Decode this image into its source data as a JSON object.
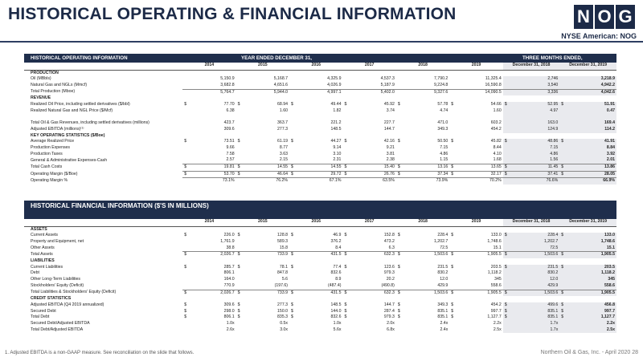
{
  "header": {
    "title": "HISTORICAL OPERATING & FINANCIAL INFORMATION",
    "logo_letters": [
      "N",
      "O",
      "G"
    ],
    "exchange": "NYSE American: NOG"
  },
  "operating": {
    "title": "HISTORICAL OPERATING INFORMATION",
    "group_year": "YEAR ENDED DECEMBER 31,",
    "group_quarter": "THREE MONTHS ENDED,",
    "years": [
      "2014",
      "2015",
      "2016",
      "2017",
      "2018",
      "2019",
      "December 31, 2018",
      "December 31, 2019"
    ],
    "rows": [
      {
        "label": "PRODUCTION",
        "type": "sec"
      },
      {
        "label": "Oil (MBbls)",
        "v": [
          "5,150.9",
          "5,168.7",
          "4,325.9",
          "4,537.3",
          "7,790.2",
          "11,325.4",
          "2,746",
          "3,218.9"
        ]
      },
      {
        "label": "Natural Gas and NGLs (Mmcf)",
        "v": [
          "3,682.8",
          "4,651.6",
          "4,026.9",
          "5,187.9",
          "9,224.8",
          "16,590.8",
          "3,540",
          "4,942.2"
        ],
        "ul": true
      },
      {
        "label": "Total Production (Mboe)",
        "v": [
          "5,764.7",
          "5,944.0",
          "4,997.1",
          "5,402.0",
          "9,327.6",
          "14,090.5",
          "3,336",
          "4,042.6"
        ]
      },
      {
        "label": "REVENUE",
        "type": "sec"
      },
      {
        "label": "Realized Oil Price, including settled derivatives ($/bbl)",
        "cur": true,
        "v": [
          "77.70",
          "68.94",
          "49.44",
          "45.92",
          "57.78",
          "54.66",
          "52.95",
          "51.91"
        ]
      },
      {
        "label": "Realized Natural Gas and NGL Price ($/Mcf)",
        "v": [
          "6.38",
          "1.60",
          "1.82",
          "3.74",
          "4.74",
          "1.60",
          "4.97",
          "0.47"
        ]
      },
      {
        "label": "",
        "type": "blank"
      },
      {
        "label": "Total Oil & Gas Revenues, including settled derivatives (millions)",
        "v": [
          "423.7",
          "363.7",
          "221.2",
          "227.7",
          "471.0",
          "603.2",
          "163.0",
          "169.4"
        ]
      },
      {
        "label": "Adjusted EBITDA (millions)⁽¹⁾",
        "v": [
          "309.6",
          "277.3",
          "148.5",
          "144.7",
          "349.3",
          "454.2",
          "124.9",
          "114.2"
        ]
      },
      {
        "label": "KEY OPERATING STATISTICS ($/Boe)",
        "type": "sec"
      },
      {
        "label": "Average Realized Price",
        "cur": true,
        "v": [
          "73.51",
          "61.19",
          "44.27",
          "42.16",
          "50.50",
          "45.82",
          "48.86",
          "41.91"
        ]
      },
      {
        "label": "Production Expenses",
        "v": [
          "9.66",
          "8.77",
          "9.14",
          "9.21",
          "7.15",
          "8.44",
          "7.15",
          "8.84"
        ]
      },
      {
        "label": "Production Taxes",
        "v": [
          "7.58",
          "3.63",
          "3.10",
          "3.81",
          "4.86",
          "4.10",
          "4.86",
          "3.92"
        ]
      },
      {
        "label": "General & Administrative Expenses-Cash",
        "v": [
          "2.57",
          "2.15",
          "2.31",
          "2.38",
          "1.15",
          "1.68",
          "1.56",
          "2.01"
        ],
        "ul": true
      },
      {
        "label": "Total Cash Costs",
        "cur": true,
        "v": [
          "19.81",
          "14.55",
          "14.55",
          "15.40",
          "13.16",
          "13.65",
          "11.45",
          "13.86"
        ],
        "ul": true
      },
      {
        "label": "Operating Margin ($/Boe)",
        "cur": true,
        "v": [
          "53.70",
          "46.64",
          "29.72",
          "26.76",
          "37.34",
          "32.17",
          "37.41",
          "28.05"
        ],
        "ul": true
      },
      {
        "label": "Operating Margin %",
        "v": [
          "73.1%",
          "76.2%",
          "67.1%",
          "63.5%",
          "73.9%",
          "70.2%",
          "76.6%",
          "66.9%"
        ]
      }
    ]
  },
  "financial": {
    "title": "HISTORICAL FINANCIAL INFORMATION ($'S IN MILLIONS)",
    "years": [
      "2014",
      "2015",
      "2016",
      "2017",
      "2018",
      "2019",
      "December 31, 2018",
      "December 31, 2019"
    ],
    "rows": [
      {
        "label": "ASSETS",
        "type": "sec"
      },
      {
        "label": "Current Assets",
        "cur": true,
        "v": [
          "226.0",
          "128.8",
          "46.9",
          "152.8",
          "228.4",
          "133.0",
          "228.4",
          "133.0"
        ]
      },
      {
        "label": "Property and Equipment, net",
        "v": [
          "1,761.9",
          "589.3",
          "376.2",
          "473.2",
          "1,202.7",
          "1,748.6",
          "1,202.7",
          "1,748.6"
        ]
      },
      {
        "label": "Other Assets",
        "v": [
          "38.8",
          "15.8",
          "8.4",
          "6.3",
          "72.5",
          "15.1",
          "72.5",
          "15.1"
        ],
        "ul": true
      },
      {
        "label": "Total Assets",
        "cur": true,
        "v": [
          "2,026.7",
          "733.9",
          "431.5",
          "632.3",
          "1,503.6",
          "1,905.5",
          "1,503.6",
          "1,905.5"
        ]
      },
      {
        "label": "LIABILITIES",
        "type": "sec"
      },
      {
        "label": "Current Liabilities",
        "cur": true,
        "v": [
          "285.7",
          "78.1",
          "77.4",
          "123.6",
          "231.5",
          "203.5",
          "231.5",
          "203.5"
        ]
      },
      {
        "label": "Debt",
        "v": [
          "806.1",
          "847.8",
          "832.6",
          "979.3",
          "830.2",
          "1,118.2",
          "830.2",
          "1,118.2"
        ]
      },
      {
        "label": "Other Long-Term Liabilities",
        "v": [
          "164.0",
          "5.6",
          "8.9",
          "20.2",
          "12.0",
          "345",
          "12.0",
          "345"
        ]
      },
      {
        "label": "Stockholders' Equity (Deficit)",
        "v": [
          "770.9",
          "(197.6)",
          "(487.4)",
          "(490.8)",
          "429.9",
          "558.6",
          "429.9",
          "558.6"
        ],
        "ul": true
      },
      {
        "label": "Total Liabilities & Stockholders' Equity (Deficit)",
        "cur": true,
        "v": [
          "2,026.7",
          "733.9",
          "431.5",
          "632.3",
          "1,503.6",
          "1,905.5",
          "1,503.6",
          "1,905.5"
        ]
      },
      {
        "label": "CREDIT STATISTICS",
        "type": "sec"
      },
      {
        "label": "Adjusted EBITDA (Q4 2019 annualized)",
        "cur": true,
        "v": [
          "309.6",
          "277.3",
          "148.5",
          "144.7",
          "349.3",
          "454.2",
          "499.6",
          "456.8"
        ]
      },
      {
        "label": "Secured Debt",
        "cur": true,
        "v": [
          "298.0",
          "150.0",
          "144.0",
          "287.4",
          "835.1",
          "997.7",
          "835.1",
          "997.7"
        ]
      },
      {
        "label": "Total Debt",
        "cur": true,
        "v": [
          "806.1",
          "835.3",
          "832.6",
          "979.3",
          "835.1",
          "1,127.7",
          "835.1",
          "1,127.7"
        ]
      },
      {
        "label": "Secured Debt/Adjusted EBITDA",
        "v": [
          "1.0x",
          "0.5x",
          "1.0x",
          "2.0x",
          "2.4x",
          "2.2x",
          "1.7x",
          "2.2x"
        ]
      },
      {
        "label": "Total Debt/Adjusted EBITDA",
        "v": [
          "2.6x",
          "3.0x",
          "5.6x",
          "6.8x",
          "2.4x",
          "2.5x",
          "1.7x",
          "2.5x"
        ]
      }
    ]
  },
  "footnote": "1.   Adjusted EBITDA is a non-GAAP measure. See reconciliation on the slide that follows.",
  "footer": "Northern Oil & Gas, Inc. - April 2020     28"
}
